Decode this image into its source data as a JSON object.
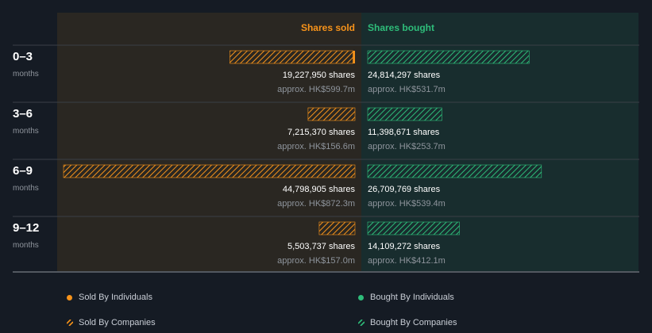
{
  "chart_data": {
    "type": "bar",
    "headers": {
      "sold": "Shares sold",
      "bought": "Shares bought"
    },
    "categories": [
      {
        "label": "0–3",
        "sub": "months"
      },
      {
        "label": "3–6",
        "sub": "months"
      },
      {
        "label": "6–9",
        "sub": "months"
      },
      {
        "label": "9–12",
        "sub": "months"
      }
    ],
    "series": [
      {
        "name": "Shares sold",
        "side": "sold",
        "companies": [
          19227950,
          7215370,
          44798905,
          5503737
        ],
        "individuals": [
          180000,
          0,
          0,
          0
        ],
        "shares_text": [
          "19,227,950 shares",
          "7,215,370 shares",
          "44,798,905 shares",
          "5,503,737 shares"
        ],
        "value_text": [
          "approx. HK$599.7m",
          "approx. HK$156.6m",
          "approx. HK$872.3m",
          "approx. HK$157.0m"
        ]
      },
      {
        "name": "Shares bought",
        "side": "bought",
        "companies": [
          24814297,
          11398671,
          26709769,
          14109272
        ],
        "individuals": [
          0,
          0,
          0,
          0
        ],
        "shares_text": [
          "24,814,297 shares",
          "11,398,671 shares",
          "26,709,769 shares",
          "14,109,272 shares"
        ],
        "value_text": [
          "approx. HK$531.7m",
          "approx. HK$253.7m",
          "approx. HK$539.4m",
          "approx. HK$412.1m"
        ]
      }
    ],
    "scale_max": 44798905,
    "legend": {
      "sold_individuals": "Sold By Individuals",
      "bought_individuals": "Bought By Individuals",
      "sold_companies": "Sold By Companies",
      "bought_companies": "Bought By Companies"
    },
    "colors": {
      "background": "#151b24",
      "sold_panel": "#2a2722",
      "bought_panel": "#182d2e",
      "sold": "#f7931a",
      "bought": "#2ebd7a",
      "divider": "#3a3f47",
      "muted_text": "#8e949c"
    }
  }
}
